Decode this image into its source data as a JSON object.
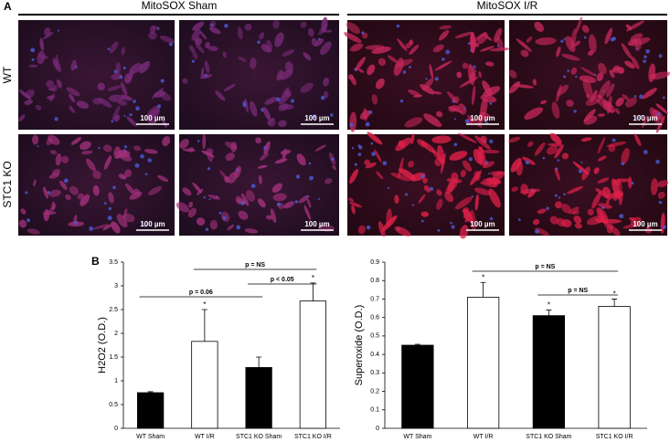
{
  "panel_a": {
    "label": "A",
    "groups": [
      "MitoSOX Sham",
      "MitoSOX I/R"
    ],
    "rows": [
      "WT",
      "STC1 KO"
    ],
    "scale_bar": "100 µm"
  },
  "panel_b": {
    "label": "B"
  },
  "chart_data": [
    {
      "type": "bar",
      "y_label": "H2O2 (O.D.)",
      "categories": [
        "WT Sham",
        "WT I/R",
        "STC1 KO Sham",
        "STC1 KO I/R"
      ],
      "values": [
        0.75,
        1.83,
        1.28,
        2.68
      ],
      "errors": [
        0.02,
        0.67,
        0.22,
        0.38
      ],
      "colors": [
        "#000000",
        "#ffffff",
        "#000000",
        "#ffffff"
      ],
      "markers": [
        null,
        "*",
        null,
        "*"
      ],
      "comparisons": [
        {
          "label": "p = NS",
          "from": 1,
          "to": 3
        },
        {
          "label": "p < 0.05",
          "from": 2,
          "to": 3
        },
        {
          "label": "p = 0.06",
          "from": 0,
          "to": 2
        }
      ],
      "ylim": [
        0,
        3.5
      ],
      "yticks": [
        0,
        0.5,
        1,
        1.5,
        2,
        2.5,
        3,
        3.5
      ]
    },
    {
      "type": "bar",
      "y_label": "Superoxide (O.D.)",
      "categories": [
        "WT Sham",
        "WT I/R",
        "STC1 KO Sham",
        "STC1 KO I/R"
      ],
      "values": [
        0.45,
        0.71,
        0.61,
        0.66
      ],
      "errors": [
        0.005,
        0.08,
        0.03,
        0.04
      ],
      "colors": [
        "#000000",
        "#ffffff",
        "#000000",
        "#ffffff"
      ],
      "markers": [
        null,
        "*",
        "*",
        "*"
      ],
      "comparisons": [
        {
          "label": "p = NS",
          "from": 1,
          "to": 3
        },
        {
          "label": "p = NS",
          "from": 2,
          "to": 3
        }
      ],
      "ylim": [
        0,
        0.9
      ],
      "yticks": [
        0,
        0.1,
        0.2,
        0.3,
        0.4,
        0.5,
        0.6,
        0.7,
        0.8,
        0.9
      ]
    }
  ]
}
